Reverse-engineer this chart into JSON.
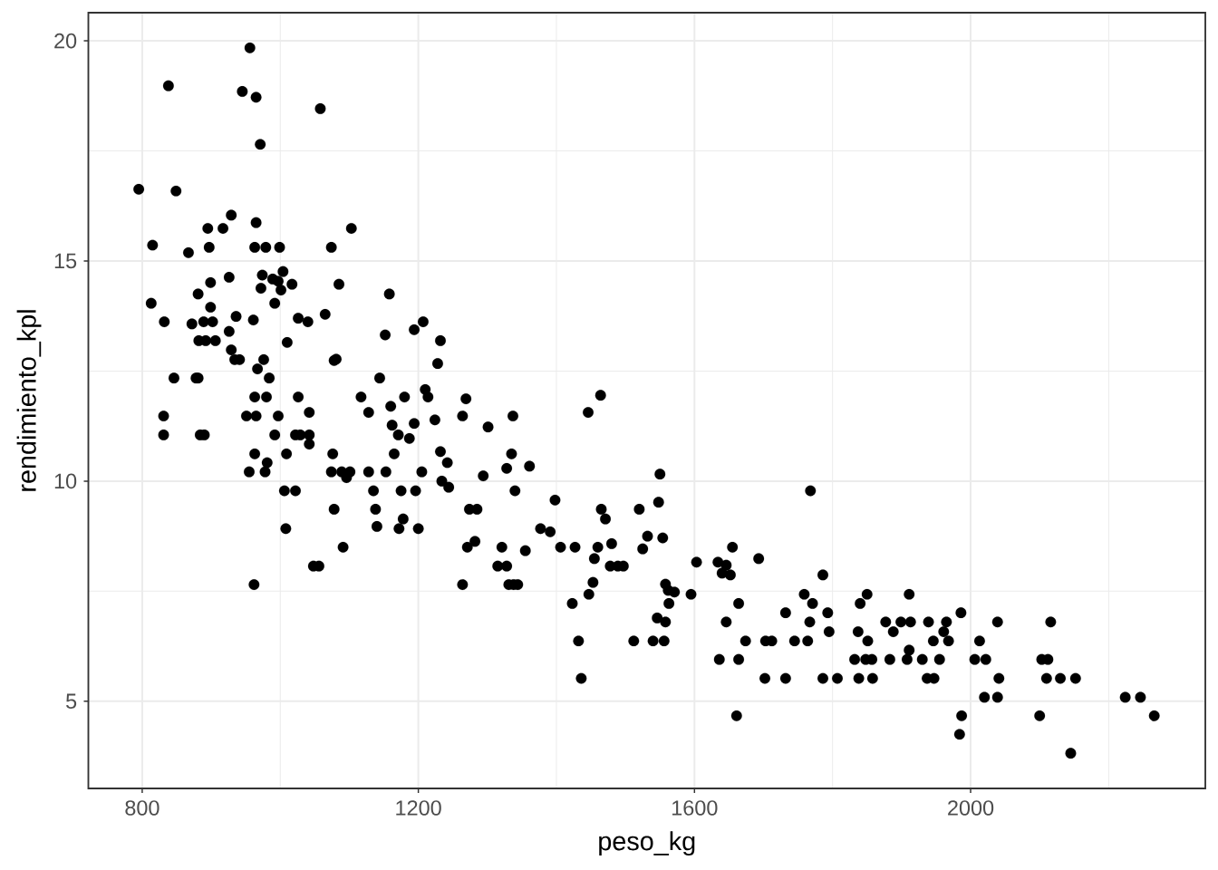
{
  "chart_data": {
    "type": "scatter",
    "xlabel": "peso_kg",
    "ylabel": "rendimiento_kpl",
    "color": "#000000",
    "marker": "circle",
    "grid": true,
    "xlim": [
      722,
      2340
    ],
    "ylim": [
      3.02,
      20.64
    ],
    "xticks": [
      800,
      1200,
      1600,
      2000
    ],
    "yticks": [
      5,
      10,
      15,
      20
    ],
    "x": [
      956,
      838,
      945,
      965,
      1058,
      971,
      795,
      849,
      929,
      965,
      1103,
      895,
      917,
      815,
      867,
      897,
      963,
      979,
      999,
      1074,
      1004,
      974,
      926,
      899,
      989,
      997,
      1017,
      1085,
      972,
      1001,
      881,
      1158,
      813,
      992,
      899,
      936,
      1065,
      832,
      872,
      889,
      902,
      961,
      1026,
      1040,
      1207,
      1194,
      1152,
      926,
      882,
      892,
      906,
      1010,
      1232,
      929,
      934,
      941,
      976,
      1078,
      1081,
      1228,
      967,
      846,
      878,
      984,
      1144,
      963,
      980,
      1026,
      1117,
      1180,
      1210,
      1214,
      1160,
      1269,
      831,
      831,
      884,
      890,
      951,
      965,
      997,
      1042,
      1128,
      1194,
      1224,
      1264,
      992,
      1022,
      1029,
      1042,
      1042,
      1162,
      1171,
      1187,
      963,
      1009,
      1076,
      1165,
      1232,
      1242,
      981,
      955,
      978,
      1074,
      1089,
      1101,
      1096,
      1128,
      1153,
      1205,
      1234,
      1244,
      1006,
      1022,
      1135,
      1175,
      1196,
      1078,
      1138,
      1008,
      1140,
      1178,
      1172,
      1200,
      1091,
      1048,
      1056,
      962,
      1264,
      1464,
      1337,
      1446,
      1301,
      1335,
      1328,
      1361,
      1294,
      1550,
      1340,
      1398,
      1274,
      1285,
      1465,
      1471,
      1520,
      1548,
      1768,
      1377,
      1391,
      1532,
      1554,
      1271,
      1282,
      1321,
      1355,
      1406,
      1427,
      1460,
      1480,
      1455,
      1525,
      1655,
      1693,
      1315,
      1328,
      1478,
      1489,
      1497,
      1603,
      1634,
      1646,
      1640,
      1652,
      1786,
      1331,
      1338,
      1344,
      1453,
      1447,
      1423,
      1558,
      1562,
      1571,
      1563,
      1595,
      1664,
      1759,
      1771,
      1793,
      1795,
      1546,
      1558,
      1646,
      1732,
      1767,
      1432,
      1512,
      1540,
      1556,
      1674,
      1703,
      1712,
      1745,
      1764,
      1636,
      1664,
      1436,
      1702,
      1732,
      1786,
      1661,
      1850,
      1840,
      1911,
      1986,
      1877,
      1899,
      1913,
      1939,
      1965,
      1961,
      2039,
      2116,
      1837,
      1888,
      1851,
      1946,
      1968,
      2013,
      1911,
      1832,
      1848,
      1857,
      1883,
      1908,
      1930,
      1955,
      2006,
      2022,
      2103,
      2112,
      1807,
      1838,
      1858,
      1937,
      1947,
      2041,
      2110,
      2130,
      2152,
      2020,
      2039,
      2224,
      2246,
      1987,
      2100,
      2266,
      1984,
      2145,
      881
    ],
    "values": [
      19.84,
      18.98,
      18.85,
      18.72,
      18.46,
      17.65,
      16.63,
      16.59,
      16.04,
      15.87,
      15.74,
      15.74,
      15.74,
      15.36,
      15.19,
      15.31,
      15.31,
      15.31,
      15.31,
      15.31,
      14.76,
      14.68,
      14.63,
      14.51,
      14.59,
      14.54,
      14.47,
      14.47,
      14.38,
      14.34,
      14.25,
      14.25,
      14.04,
      14.04,
      13.95,
      13.74,
      13.79,
      13.62,
      13.57,
      13.62,
      13.62,
      13.66,
      13.7,
      13.62,
      13.62,
      13.44,
      13.32,
      13.4,
      13.19,
      13.19,
      13.19,
      13.15,
      13.19,
      12.98,
      12.76,
      12.76,
      12.76,
      12.74,
      12.77,
      12.67,
      12.55,
      12.34,
      12.34,
      12.34,
      12.34,
      11.91,
      11.91,
      11.91,
      11.91,
      11.91,
      12.08,
      11.91,
      11.7,
      11.87,
      11.48,
      11.05,
      11.05,
      11.05,
      11.48,
      11.48,
      11.48,
      11.56,
      11.56,
      11.31,
      11.39,
      11.48,
      11.05,
      11.05,
      11.05,
      11.05,
      10.84,
      11.27,
      11.05,
      10.97,
      10.62,
      10.62,
      10.62,
      10.62,
      10.67,
      10.42,
      10.42,
      10.21,
      10.21,
      10.21,
      10.21,
      10.21,
      10.08,
      10.21,
      10.21,
      10.21,
      10.0,
      9.86,
      9.78,
      9.78,
      9.78,
      9.78,
      9.78,
      9.36,
      9.36,
      8.92,
      8.97,
      9.14,
      8.92,
      8.92,
      8.5,
      8.07,
      8.07,
      7.65,
      7.65,
      11.95,
      11.48,
      11.56,
      11.23,
      10.62,
      10.29,
      10.34,
      10.12,
      10.16,
      9.78,
      9.57,
      9.36,
      9.36,
      9.36,
      9.14,
      9.36,
      9.52,
      9.78,
      8.92,
      8.85,
      8.75,
      8.71,
      8.5,
      8.63,
      8.5,
      8.42,
      8.5,
      8.5,
      8.5,
      8.58,
      8.24,
      8.46,
      8.5,
      8.24,
      8.07,
      8.07,
      8.07,
      8.07,
      8.07,
      8.16,
      8.16,
      8.09,
      7.91,
      7.87,
      7.87,
      7.65,
      7.65,
      7.65,
      7.7,
      7.43,
      7.22,
      7.66,
      7.52,
      7.48,
      7.22,
      7.43,
      7.22,
      7.43,
      7.22,
      7.01,
      6.58,
      6.89,
      6.8,
      6.8,
      7.01,
      6.8,
      6.37,
      6.37,
      6.37,
      6.37,
      6.37,
      6.37,
      6.37,
      6.37,
      6.37,
      5.95,
      5.95,
      5.52,
      5.52,
      5.52,
      5.52,
      4.67,
      7.43,
      7.22,
      7.43,
      7.01,
      6.8,
      6.8,
      6.8,
      6.8,
      6.8,
      6.58,
      6.8,
      6.8,
      6.58,
      6.58,
      6.37,
      6.37,
      6.37,
      6.37,
      6.16,
      5.95,
      5.95,
      5.95,
      5.95,
      5.95,
      5.95,
      5.95,
      5.95,
      5.95,
      5.95,
      5.95,
      5.52,
      5.52,
      5.52,
      5.52,
      5.52,
      5.52,
      5.52,
      5.52,
      5.52,
      5.09,
      5.09,
      5.09,
      5.09,
      4.67,
      4.67,
      4.67,
      4.25,
      3.82,
      12.34
    ]
  }
}
